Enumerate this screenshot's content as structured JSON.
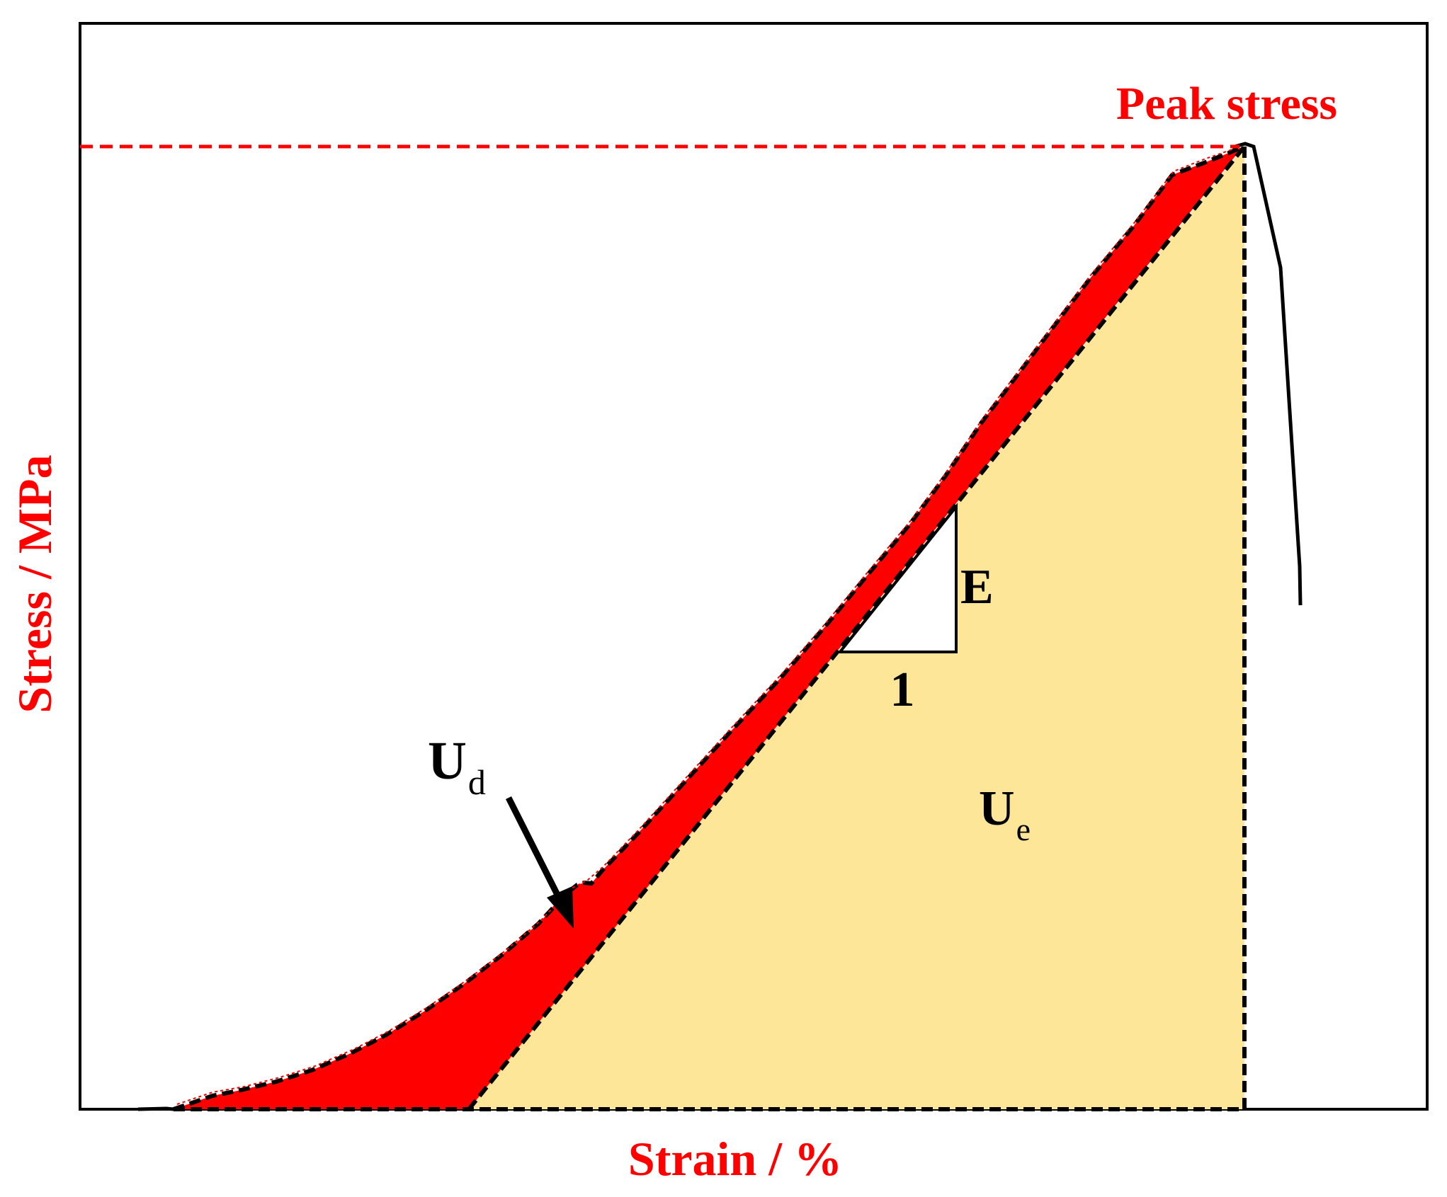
{
  "labels": {
    "y_axis": "Stress / MPa",
    "x_axis": "Strain / %",
    "peak": "Peak stress",
    "modulus": "E",
    "unit_run": "1",
    "ud_main": "U",
    "ud_sub": "d",
    "ue_main": "U",
    "ue_sub": "e"
  },
  "colors": {
    "dissipated_fill": "#ff0000",
    "elastic_fill": "#fde698",
    "label_red": "#ff0000",
    "stroke": "#000000",
    "peak_line": "#ff0000"
  }
}
